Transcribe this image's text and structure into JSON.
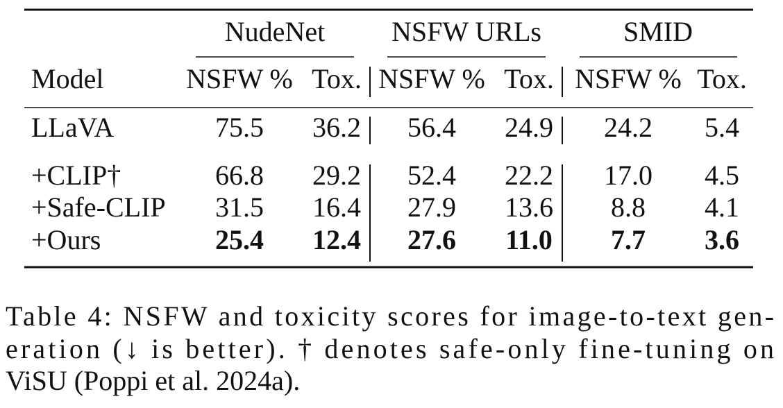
{
  "table": {
    "groups": [
      "NudeNet",
      "NSFW URLs",
      "SMID"
    ],
    "columns": [
      "Model",
      "NSFW %",
      "Tox.",
      "NSFW %",
      "Tox.",
      "NSFW %",
      "Tox."
    ],
    "rows": [
      {
        "cells": [
          "LLaVA",
          "75.5",
          "36.2",
          "56.4",
          "24.9",
          "24.2",
          "5.4"
        ],
        "bold": false
      },
      {
        "cells": [
          "+CLIP†",
          "66.8",
          "29.2",
          "52.4",
          "22.2",
          "17.0",
          "4.5"
        ],
        "bold": false
      },
      {
        "cells": [
          "+Safe-CLIP",
          "31.5",
          "16.4",
          "27.9",
          "13.6",
          "8.8",
          "4.1"
        ],
        "bold": false
      },
      {
        "cells": [
          "+Ours",
          "25.4",
          "12.4",
          "27.6",
          "11.0",
          "7.7",
          "3.6"
        ],
        "bold": true
      }
    ]
  },
  "caption": {
    "lines": [
      "Table 4: NSFW and toxicity scores for image-to-text gen-",
      "eration (↓ is better). † denotes safe-only fine-tuning on",
      "ViSU (Poppi et al. 2024a)."
    ]
  }
}
